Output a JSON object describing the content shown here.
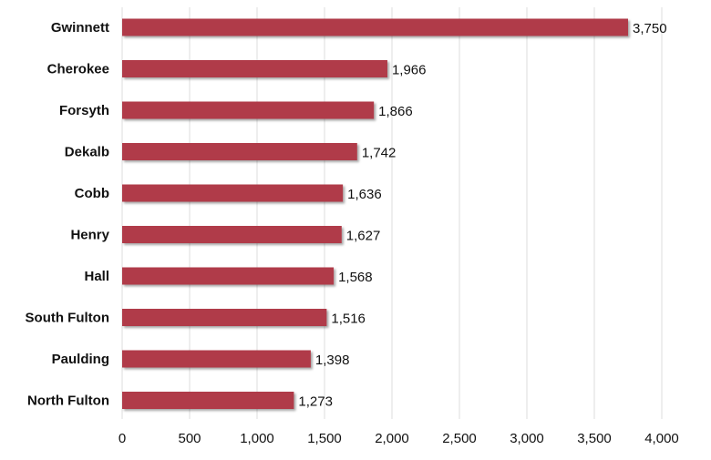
{
  "chart_data": {
    "type": "bar",
    "orientation": "horizontal",
    "title": "",
    "xlabel": "",
    "ylabel": "",
    "categories": [
      "Gwinnett",
      "Cherokee",
      "Forsyth",
      "Dekalb",
      "Cobb",
      "Henry",
      "Hall",
      "South Fulton",
      "Paulding",
      "North Fulton"
    ],
    "values": [
      3750,
      1966,
      1866,
      1742,
      1636,
      1627,
      1568,
      1516,
      1398,
      1273
    ],
    "data_labels": [
      "3,750",
      "1,966",
      "1,866",
      "1,742",
      "1,636",
      "1,627",
      "1,568",
      "1,516",
      "1,398",
      "1,273"
    ],
    "xlim": [
      0,
      4000
    ],
    "x_ticks": [
      0,
      500,
      1000,
      1500,
      2000,
      2500,
      3000,
      3500,
      4000
    ],
    "x_tick_labels": [
      "0",
      "500",
      "1,000",
      "1,500",
      "2,000",
      "2,500",
      "3,000",
      "3,500",
      "4,000"
    ],
    "grid": "vertical",
    "legend": "none",
    "bar_color": "#b03b48"
  }
}
